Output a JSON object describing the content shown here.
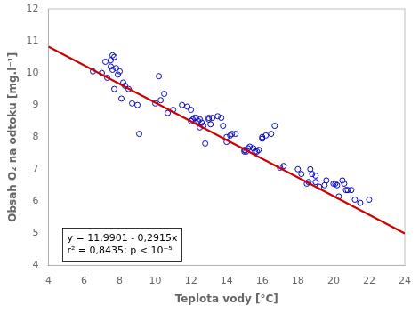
{
  "chart_data": {
    "type": "scatter",
    "xlabel": "Teplota vody [°C]",
    "ylabel": "Obsah O₂ na odtoku [mg.l⁻¹]",
    "annotations": [
      "y = 11,9901 - 0,2915x",
      "r² = 0,8435; p < 10⁻⁵"
    ],
    "xlim": [
      4,
      24
    ],
    "ylim": [
      4,
      12
    ],
    "xticks": [
      4,
      6,
      8,
      10,
      12,
      14,
      16,
      18,
      20,
      22,
      24
    ],
    "yticks": [
      4,
      5,
      6,
      7,
      8,
      9,
      10,
      11,
      12
    ],
    "grid": false,
    "series": [
      {
        "type": "scatter",
        "color": "#0000cc",
        "marker": "circle",
        "x": [
          6.5,
          7.0,
          7.2,
          7.3,
          7.5,
          7.6,
          7.7,
          7.8,
          7.9,
          7.5,
          7.6,
          7.7,
          8.0,
          8.1,
          8.2,
          8.3,
          8.5,
          8.7,
          9.0,
          9.1,
          10.0,
          10.2,
          10.3,
          10.5,
          10.7,
          11.0,
          11.5,
          11.8,
          12.0,
          12.0,
          12.1,
          12.2,
          12.3,
          12.4,
          12.5,
          12.5,
          12.6,
          12.7,
          12.8,
          13.0,
          13.0,
          13.1,
          13.2,
          13.5,
          13.7,
          13.8,
          14.0,
          14.0,
          14.2,
          14.3,
          14.5,
          15.0,
          15.0,
          15.1,
          15.2,
          15.3,
          15.5,
          15.6,
          15.7,
          15.8,
          16.0,
          16.0,
          16.2,
          16.5,
          16.7,
          17.0,
          17.2,
          18.0,
          18.2,
          18.5,
          18.6,
          18.7,
          18.8,
          19.0,
          19.0,
          19.2,
          19.5,
          19.6,
          20.0,
          20.1,
          20.2,
          20.3,
          20.5,
          20.6,
          20.7,
          20.8,
          21.0,
          21.2,
          21.5,
          22.0
        ],
        "values": [
          10.05,
          10.0,
          10.35,
          9.85,
          10.2,
          10.55,
          10.5,
          10.15,
          9.95,
          10.4,
          10.1,
          9.5,
          10.05,
          9.2,
          9.7,
          9.6,
          9.5,
          9.05,
          9.0,
          8.1,
          9.05,
          9.9,
          9.15,
          9.35,
          8.75,
          8.85,
          9.0,
          8.95,
          8.85,
          8.5,
          8.55,
          8.6,
          8.6,
          8.5,
          8.3,
          8.55,
          8.45,
          8.35,
          7.8,
          8.55,
          8.6,
          8.4,
          8.6,
          8.65,
          8.6,
          8.35,
          8.0,
          7.85,
          8.05,
          8.1,
          8.1,
          7.55,
          7.6,
          7.55,
          7.65,
          7.7,
          7.65,
          7.55,
          7.55,
          7.6,
          7.95,
          8.0,
          8.05,
          8.1,
          8.35,
          7.05,
          7.1,
          7.0,
          6.85,
          6.55,
          6.6,
          7.0,
          6.85,
          6.8,
          6.6,
          6.45,
          6.5,
          6.65,
          6.55,
          6.55,
          6.5,
          6.15,
          6.65,
          6.55,
          6.35,
          6.35,
          6.35,
          6.05,
          5.95,
          6.05
        ]
      },
      {
        "type": "line",
        "color": "#cc0000",
        "line_style": "solid",
        "x": [
          4,
          24
        ],
        "values": [
          10.8241,
          4.9941
        ]
      }
    ]
  }
}
